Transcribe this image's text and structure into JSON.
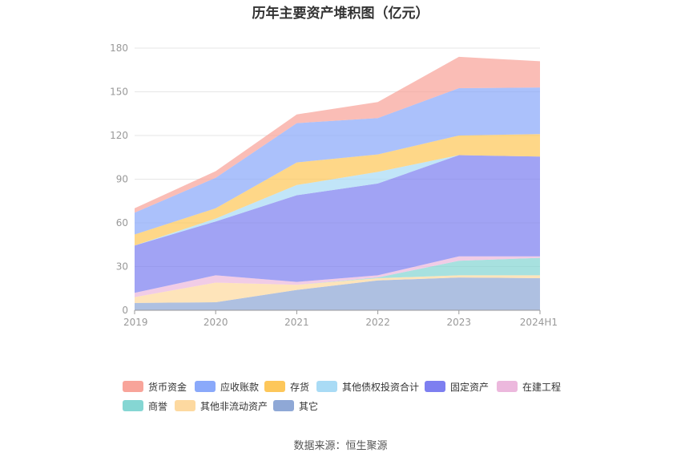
{
  "title": "历年主要资产堆积图（亿元）",
  "source": "数据来源：恒生聚源",
  "chart_data": {
    "type": "area",
    "stacked": true,
    "categories": [
      "2019",
      "2020",
      "2021",
      "2022",
      "2023",
      "2024H1"
    ],
    "ylim": [
      0,
      180
    ],
    "yticks": [
      0,
      30,
      60,
      90,
      120,
      150,
      180
    ],
    "grid": true,
    "legend_position": "bottom",
    "series": [
      {
        "name": "其它",
        "color": "#8fa8d6",
        "values": [
          5,
          5.5,
          14,
          20.5,
          22.5,
          22
        ]
      },
      {
        "name": "其他非流动资产",
        "color": "#fdd9a0",
        "values": [
          4,
          13.5,
          3.5,
          1.5,
          1.5,
          2
        ]
      },
      {
        "name": "商誉",
        "color": "#85d6d3",
        "values": [
          0,
          0,
          0,
          0.5,
          10,
          12
        ]
      },
      {
        "name": "在建工程",
        "color": "#ecb8dd",
        "values": [
          3,
          5,
          2,
          1.5,
          3,
          1
        ]
      },
      {
        "name": "固定资产",
        "color": "#7d7ff0",
        "values": [
          32.5,
          37,
          59.5,
          63,
          69.5,
          68.5
        ]
      },
      {
        "name": "其他债权投资合计",
        "color": "#a9dbf5",
        "values": [
          0,
          2,
          7,
          8,
          0,
          0
        ]
      },
      {
        "name": "存货",
        "color": "#fdc75a",
        "values": [
          7.5,
          7,
          15.5,
          12,
          13.5,
          15.5
        ]
      },
      {
        "name": "应收账款",
        "color": "#8aa9fa",
        "values": [
          15,
          21,
          27,
          25,
          32.5,
          32
        ]
      },
      {
        "name": "货币资金",
        "color": "#f8a49a",
        "values": [
          3,
          4.5,
          6,
          11,
          21.5,
          18
        ]
      }
    ]
  }
}
